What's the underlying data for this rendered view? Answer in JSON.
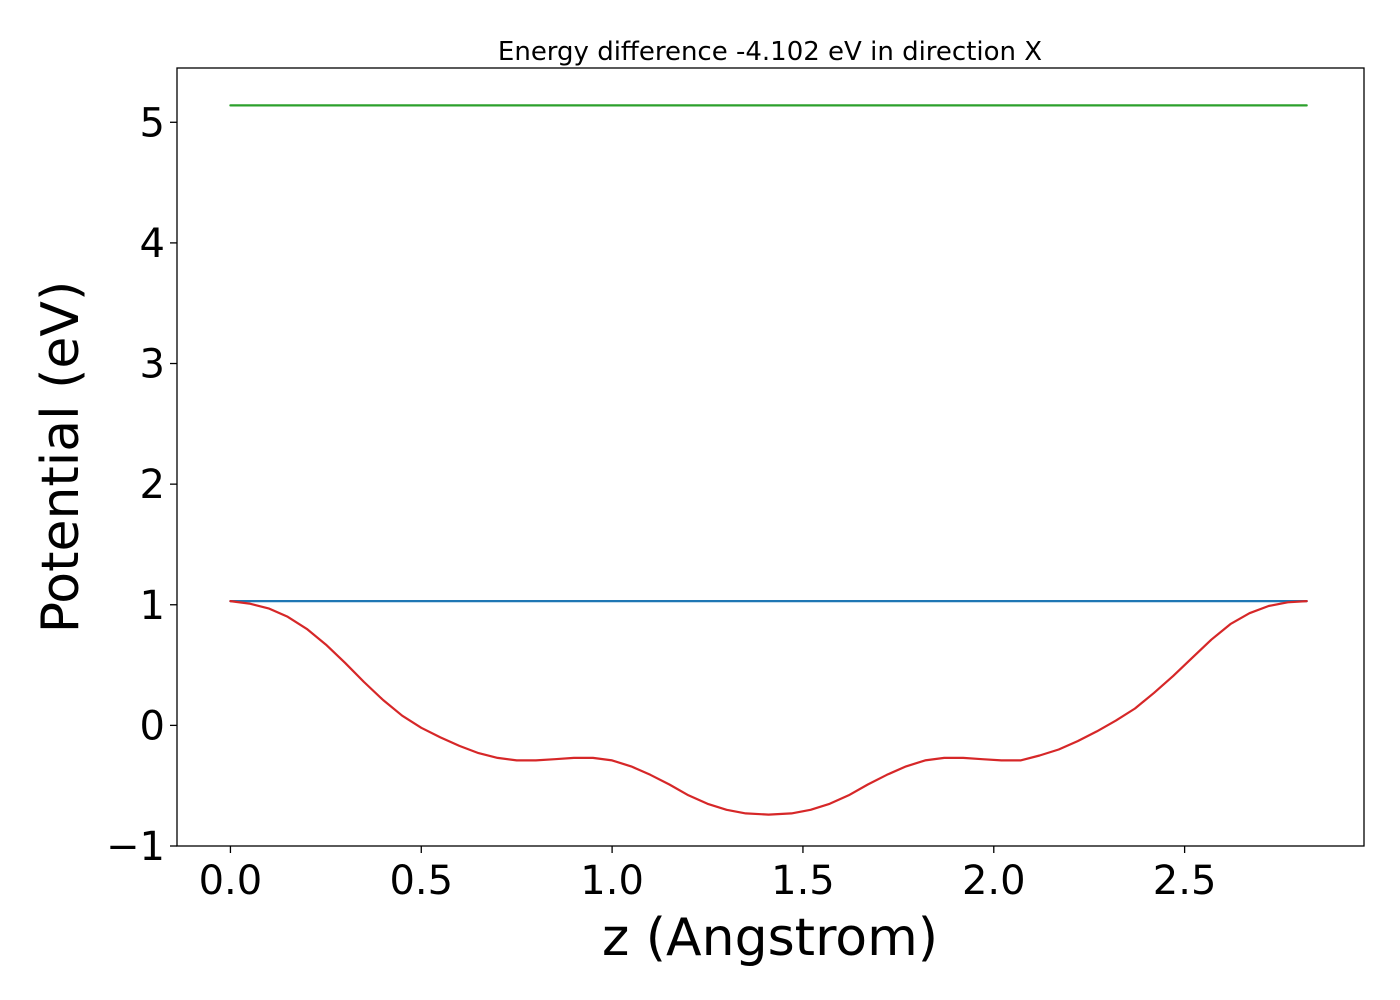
{
  "chart_data": {
    "type": "line",
    "title": "Energy difference -4.102 eV in direction X",
    "xlabel": "z (Angstrom)",
    "ylabel": "Potential (eV)",
    "xlim": [
      -0.14,
      2.97
    ],
    "ylim": [
      -1.0,
      5.45
    ],
    "xticks": [
      0.0,
      0.5,
      1.0,
      1.5,
      2.0,
      2.5
    ],
    "xtick_labels": [
      "0.0",
      "0.5",
      "1.0",
      "1.5",
      "2.0",
      "2.5"
    ],
    "yticks": [
      -1,
      0,
      1,
      2,
      3,
      4,
      5
    ],
    "ytick_labels": [
      "−1",
      "0",
      "1",
      "2",
      "3",
      "4",
      "5"
    ],
    "grid": false,
    "legend": false,
    "series": [
      {
        "color": "#2ca02c",
        "x": [
          0.0,
          2.82
        ],
        "y": [
          5.14,
          5.14
        ]
      },
      {
        "color": "#1f77b4",
        "x": [
          0.0,
          2.82
        ],
        "y": [
          1.03,
          1.03
        ]
      },
      {
        "color": "#d62728",
        "x": [
          0.0,
          0.05,
          0.1,
          0.15,
          0.2,
          0.25,
          0.3,
          0.35,
          0.4,
          0.45,
          0.5,
          0.55,
          0.6,
          0.65,
          0.7,
          0.75,
          0.8,
          0.85,
          0.9,
          0.95,
          1.0,
          1.05,
          1.1,
          1.15,
          1.2,
          1.25,
          1.3,
          1.35,
          1.41,
          1.47,
          1.52,
          1.57,
          1.62,
          1.67,
          1.72,
          1.77,
          1.82,
          1.87,
          1.92,
          1.97,
          2.02,
          2.07,
          2.12,
          2.17,
          2.22,
          2.27,
          2.32,
          2.37,
          2.42,
          2.47,
          2.52,
          2.57,
          2.62,
          2.67,
          2.72,
          2.77,
          2.82
        ],
        "y": [
          1.03,
          1.01,
          0.97,
          0.9,
          0.8,
          0.67,
          0.52,
          0.36,
          0.21,
          0.08,
          -0.02,
          -0.1,
          -0.17,
          -0.23,
          -0.27,
          -0.29,
          -0.29,
          -0.28,
          -0.27,
          -0.27,
          -0.29,
          -0.34,
          -0.41,
          -0.49,
          -0.58,
          -0.65,
          -0.7,
          -0.73,
          -0.74,
          -0.73,
          -0.7,
          -0.65,
          -0.58,
          -0.49,
          -0.41,
          -0.34,
          -0.29,
          -0.27,
          -0.27,
          -0.28,
          -0.29,
          -0.29,
          -0.25,
          -0.2,
          -0.13,
          -0.05,
          0.04,
          0.14,
          0.27,
          0.41,
          0.56,
          0.71,
          0.84,
          0.93,
          0.99,
          1.02,
          1.03
        ]
      }
    ]
  }
}
